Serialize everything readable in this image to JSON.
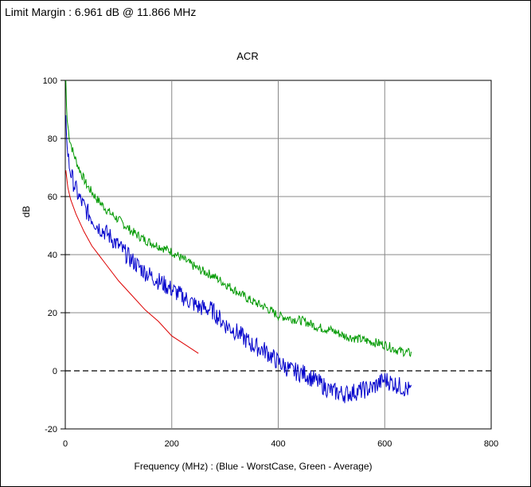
{
  "header": {
    "limit_text": "Limit Margin : 6.961 dB @ 11.866 MHz"
  },
  "chart_data": {
    "type": "line",
    "title": "ACR",
    "xlabel": "Frequency (MHz) : (Blue - WorstCase, Green - Average)",
    "ylabel": "dB",
    "xlim": [
      0,
      800
    ],
    "ylim": [
      -20,
      100
    ],
    "xticks": [
      0,
      200,
      400,
      600,
      800
    ],
    "yticks": [
      -20,
      0,
      20,
      40,
      60,
      80,
      100
    ],
    "xtick_labels": [
      "0",
      "200",
      "400",
      "600",
      "800"
    ],
    "ytick_labels": [
      "-20",
      "0",
      "20",
      "40",
      "60",
      "80",
      "100"
    ],
    "grid": true,
    "zero_line_dashed": true,
    "series": [
      {
        "color": "#009900",
        "points": [
          [
            1,
            100
          ],
          [
            3,
            87
          ],
          [
            8,
            80
          ],
          [
            15,
            75
          ],
          [
            25,
            70
          ],
          [
            40,
            64
          ],
          [
            60,
            59
          ],
          [
            80,
            55
          ],
          [
            100,
            52
          ],
          [
            125,
            48
          ],
          [
            150,
            45
          ],
          [
            175,
            43
          ],
          [
            200,
            41
          ],
          [
            225,
            38
          ],
          [
            250,
            35
          ],
          [
            275,
            33
          ],
          [
            300,
            30
          ],
          [
            325,
            27
          ],
          [
            350,
            24
          ],
          [
            375,
            22
          ],
          [
            400,
            19
          ],
          [
            425,
            18
          ],
          [
            450,
            17
          ],
          [
            475,
            15
          ],
          [
            500,
            14
          ],
          [
            525,
            12
          ],
          [
            550,
            11
          ],
          [
            575,
            10
          ],
          [
            600,
            9
          ],
          [
            625,
            7
          ],
          [
            650,
            6
          ]
        ]
      },
      {
        "color": "#0000cc",
        "points": [
          [
            1,
            88
          ],
          [
            3,
            78
          ],
          [
            8,
            70
          ],
          [
            15,
            65
          ],
          [
            25,
            60
          ],
          [
            40,
            55
          ],
          [
            60,
            50
          ],
          [
            80,
            47
          ],
          [
            100,
            43
          ],
          [
            125,
            38
          ],
          [
            150,
            34
          ],
          [
            175,
            31
          ],
          [
            200,
            28
          ],
          [
            225,
            25
          ],
          [
            250,
            22
          ],
          [
            275,
            21
          ],
          [
            300,
            16
          ],
          [
            325,
            13
          ],
          [
            350,
            9
          ],
          [
            375,
            7
          ],
          [
            400,
            3
          ],
          [
            425,
            0
          ],
          [
            450,
            -1
          ],
          [
            475,
            -4
          ],
          [
            500,
            -7
          ],
          [
            525,
            -8
          ],
          [
            550,
            -7
          ],
          [
            575,
            -6
          ],
          [
            600,
            -3
          ],
          [
            625,
            -5
          ],
          [
            650,
            -7
          ]
        ]
      },
      {
        "color": "#dd0000",
        "points": [
          [
            1,
            69
          ],
          [
            5,
            63
          ],
          [
            10,
            59
          ],
          [
            20,
            54
          ],
          [
            35,
            48
          ],
          [
            50,
            43
          ],
          [
            75,
            37
          ],
          [
            100,
            31
          ],
          [
            125,
            26
          ],
          [
            150,
            21
          ],
          [
            175,
            17
          ],
          [
            200,
            12
          ],
          [
            225,
            9
          ],
          [
            250,
            6
          ]
        ]
      }
    ]
  }
}
